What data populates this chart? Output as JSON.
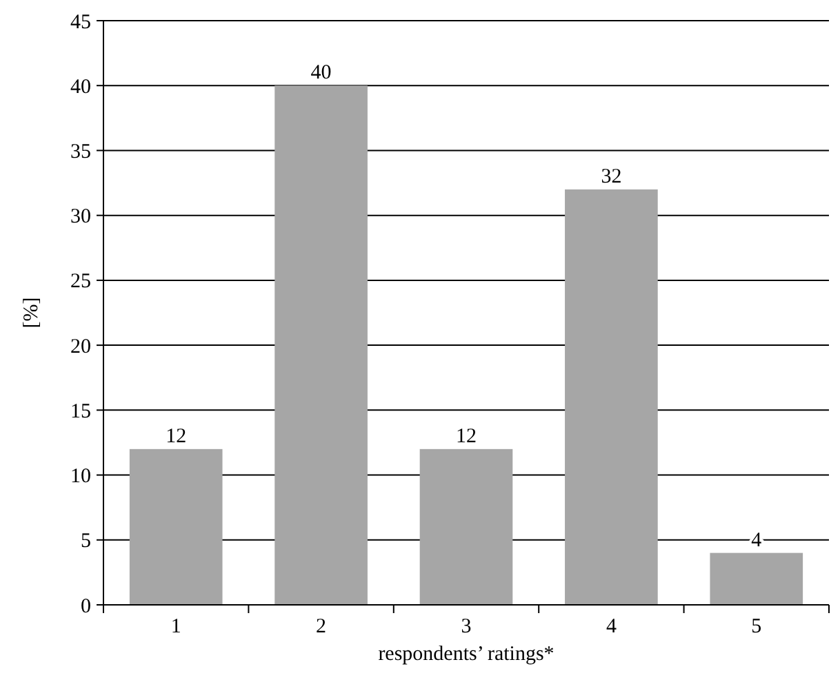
{
  "chart_data": {
    "type": "bar",
    "xlabel": "respondents’ ratings*",
    "ylabel": "[%]",
    "categories": [
      "1",
      "2",
      "3",
      "4",
      "5"
    ],
    "values": [
      12,
      40,
      12,
      32,
      4
    ],
    "color": "#a6a6a6",
    "ylim": [
      0,
      45
    ],
    "yticks": [
      0,
      5,
      10,
      15,
      20,
      25,
      30,
      35,
      40,
      45
    ],
    "grid": "y",
    "data_labels": true
  }
}
